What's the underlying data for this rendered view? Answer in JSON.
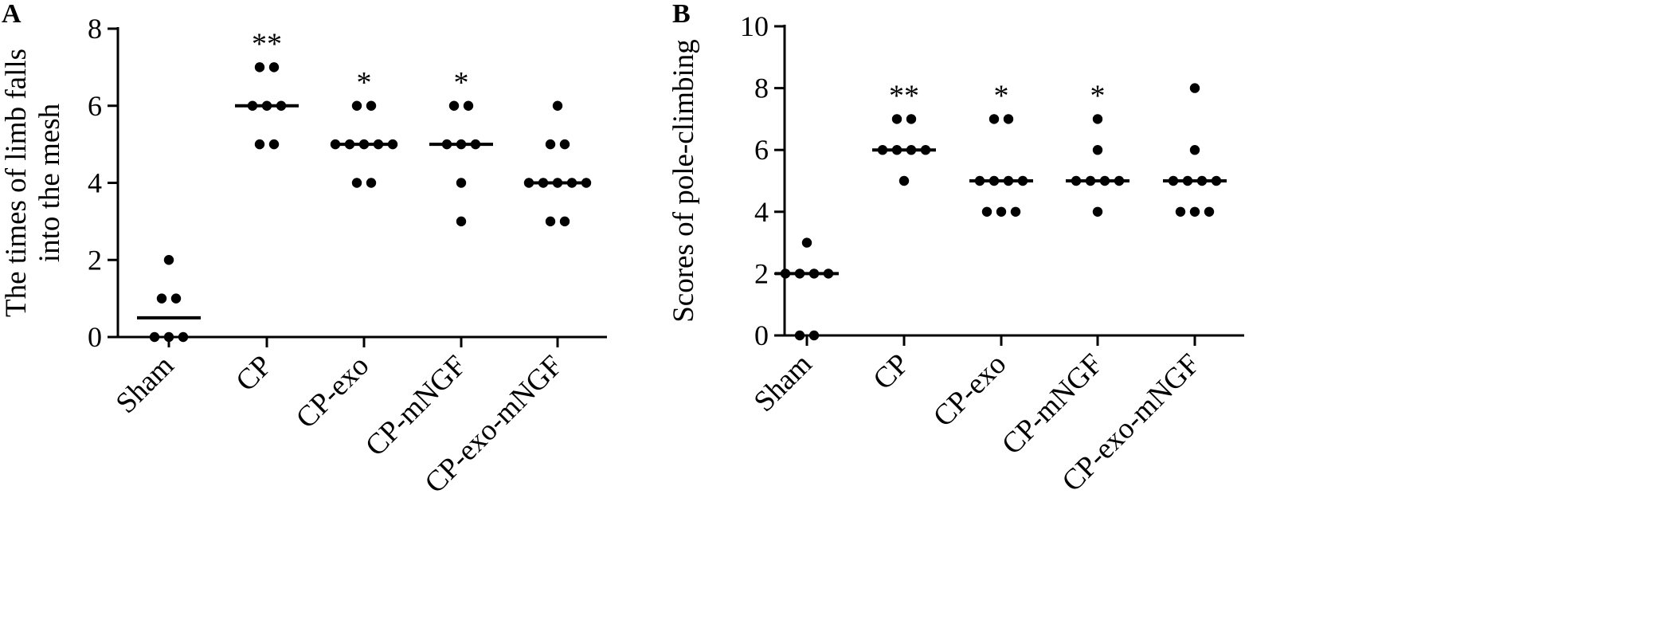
{
  "chart_data": [
    {
      "type": "scatter",
      "panel": "A",
      "ylabel": [
        "The times of limb falls",
        "into the mesh"
      ],
      "ylim": [
        0,
        8
      ],
      "yticks": [
        0,
        2,
        4,
        6,
        8
      ],
      "categories": [
        "Sham",
        "CP",
        "CP-exo",
        "CP-mNGF",
        "CP-exo-mNGF"
      ],
      "groups": [
        {
          "name": "Sham",
          "points": [
            2,
            1,
            1,
            0,
            0,
            0
          ],
          "median": 0.5,
          "sig": ""
        },
        {
          "name": "CP",
          "points": [
            7,
            7,
            6,
            6,
            6,
            5,
            5
          ],
          "median": 6,
          "sig": "**"
        },
        {
          "name": "CP-exo",
          "points": [
            6,
            6,
            5,
            5,
            5,
            5,
            5,
            4,
            4
          ],
          "median": 5,
          "sig": "*"
        },
        {
          "name": "CP-mNGF",
          "points": [
            6,
            6,
            5,
            5,
            5,
            4,
            3
          ],
          "median": 5,
          "sig": "*"
        },
        {
          "name": "CP-exo-mNGF",
          "points": [
            6,
            5,
            5,
            4,
            4,
            4,
            4,
            4,
            3,
            3
          ],
          "median": 4,
          "sig": ""
        }
      ]
    },
    {
      "type": "scatter",
      "panel": "B",
      "ylabel": [
        "Scores of pole-climbing"
      ],
      "ylim": [
        0,
        10
      ],
      "yticks": [
        0,
        2,
        4,
        6,
        8,
        10
      ],
      "categories": [
        "Sham",
        "CP",
        "CP-exo",
        "CP-mNGF",
        "CP-exo-mNGF"
      ],
      "groups": [
        {
          "name": "Sham",
          "points": [
            3,
            2,
            2,
            2,
            2,
            0,
            0
          ],
          "median": 2,
          "sig": ""
        },
        {
          "name": "CP",
          "points": [
            7,
            7,
            6,
            6,
            6,
            6,
            5
          ],
          "median": 6,
          "sig": "**"
        },
        {
          "name": "CP-exo",
          "points": [
            7,
            7,
            5,
            5,
            5,
            5,
            4,
            4,
            4
          ],
          "median": 5,
          "sig": "*"
        },
        {
          "name": "CP-mNGF",
          "points": [
            7,
            6,
            5,
            5,
            5,
            5,
            4
          ],
          "median": 5,
          "sig": "*"
        },
        {
          "name": "CP-exo-mNGF",
          "points": [
            8,
            6,
            5,
            5,
            5,
            5,
            4,
            4,
            4
          ],
          "median": 5,
          "sig": ""
        }
      ]
    }
  ]
}
